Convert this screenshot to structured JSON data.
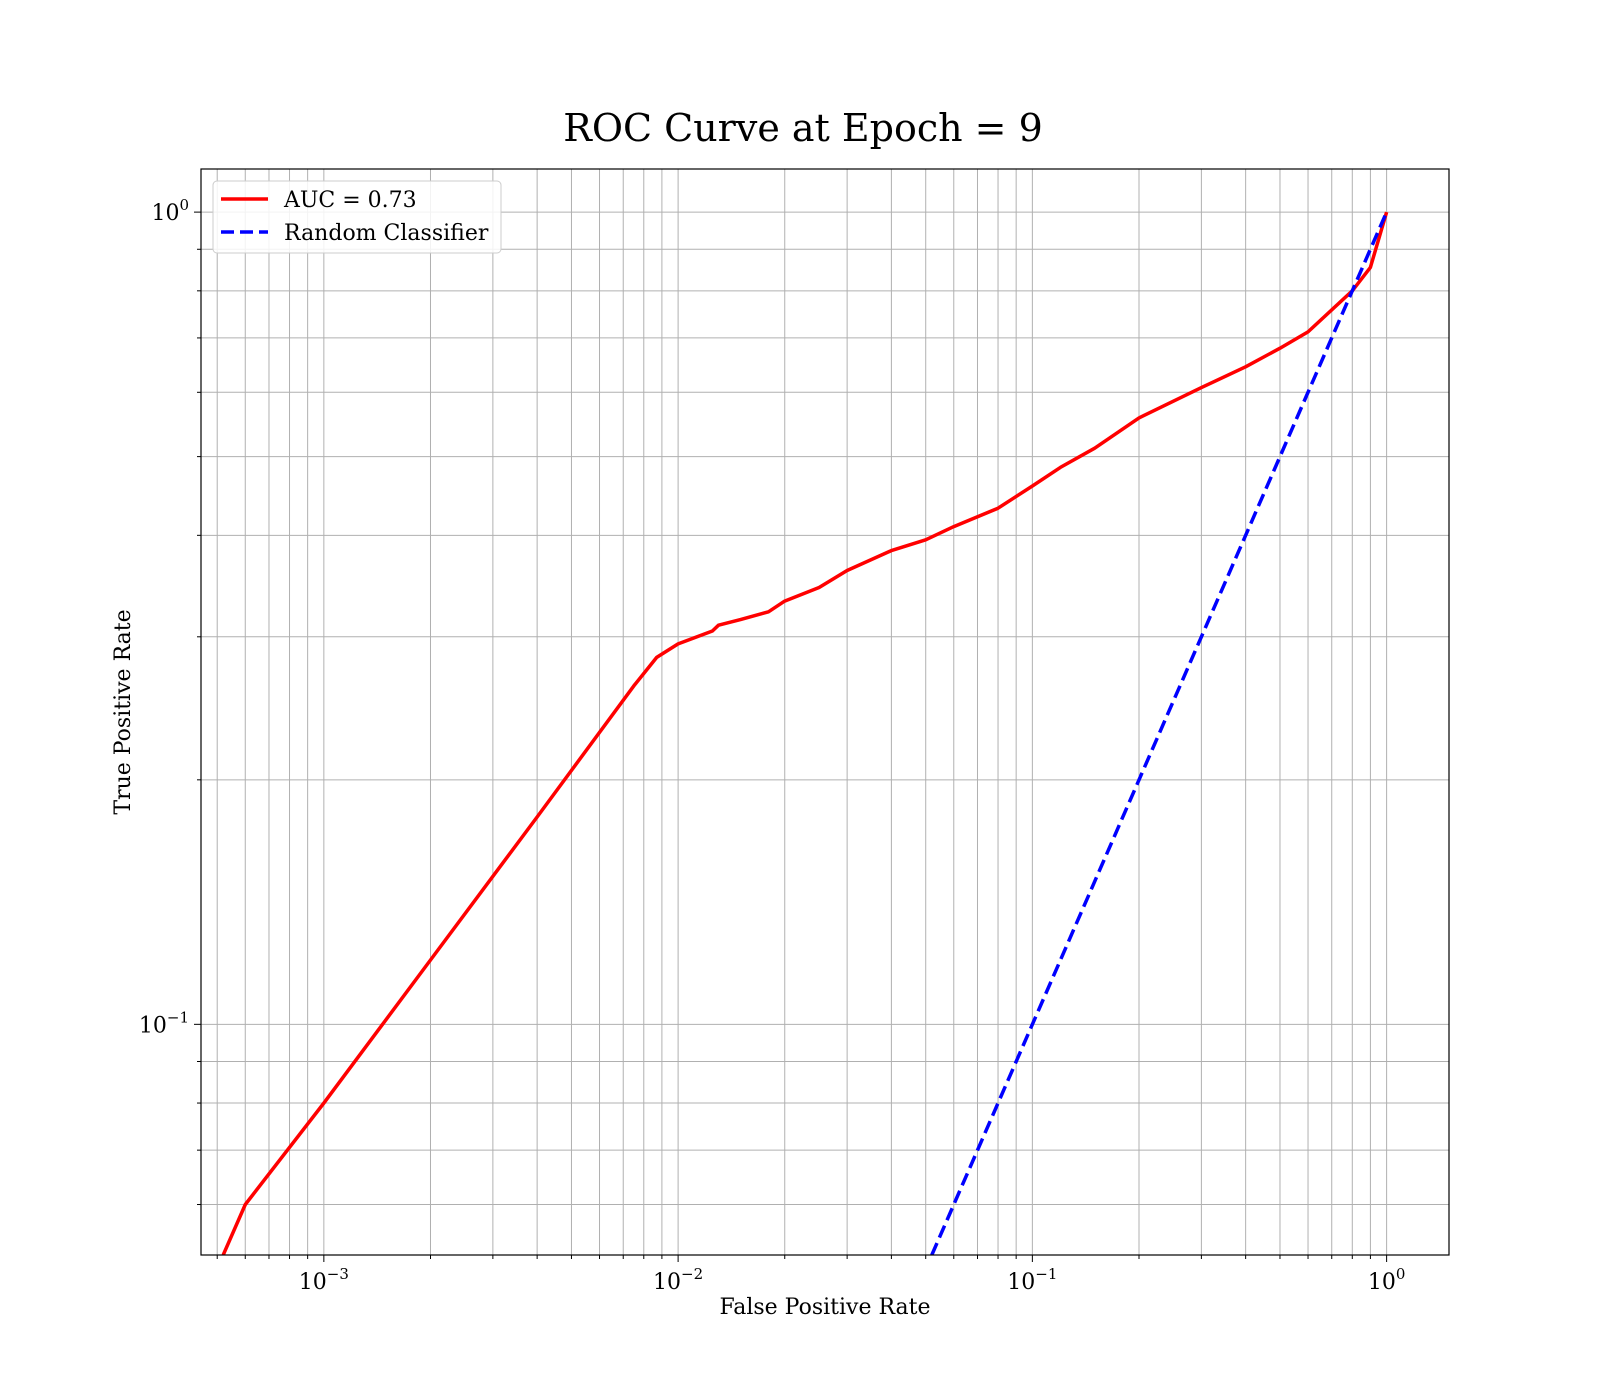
{
  "chart_data": {
    "type": "line",
    "title": "ROC Curve at Epoch = 9",
    "xlabel": "False Positive Rate",
    "ylabel": "True Positive Rate",
    "xscale": "log",
    "yscale": "log",
    "xlim": [
      0.00045,
      1.5
    ],
    "ylim": [
      0.052,
      1.13
    ],
    "grid": "both-major-minor",
    "legend_position": "top-left",
    "x_ticks": [
      {
        "base": "10",
        "exp": "−3",
        "value": 0.001
      },
      {
        "base": "10",
        "exp": "−2",
        "value": 0.01
      },
      {
        "base": "10",
        "exp": "−1",
        "value": 0.1
      },
      {
        "base": "10",
        "exp": "0",
        "value": 1
      }
    ],
    "y_ticks": [
      {
        "base": "10",
        "exp": "−1",
        "value": 0.1
      },
      {
        "base": "10",
        "exp": "0",
        "value": 1
      }
    ],
    "series": [
      {
        "name": "AUC = 0.73",
        "color": "#ff0000",
        "style": "solid",
        "points": [
          [
            0.00052,
            0.052
          ],
          [
            0.0006,
            0.06
          ],
          [
            0.001,
            0.08
          ],
          [
            0.002,
            0.12
          ],
          [
            0.004,
            0.18
          ],
          [
            0.0075,
            0.261
          ],
          [
            0.0087,
            0.283
          ],
          [
            0.01,
            0.294
          ],
          [
            0.0125,
            0.305
          ],
          [
            0.013,
            0.31
          ],
          [
            0.015,
            0.315
          ],
          [
            0.018,
            0.322
          ],
          [
            0.02,
            0.332
          ],
          [
            0.025,
            0.345
          ],
          [
            0.03,
            0.362
          ],
          [
            0.04,
            0.383
          ],
          [
            0.05,
            0.395
          ],
          [
            0.06,
            0.41
          ],
          [
            0.08,
            0.432
          ],
          [
            0.1,
            0.46
          ],
          [
            0.12,
            0.485
          ],
          [
            0.15,
            0.512
          ],
          [
            0.2,
            0.558
          ],
          [
            0.3,
            0.608
          ],
          [
            0.4,
            0.645
          ],
          [
            0.5,
            0.68
          ],
          [
            0.6,
            0.712
          ],
          [
            0.8,
            0.8
          ],
          [
            0.9,
            0.855
          ],
          [
            1.0,
            1.0
          ]
        ]
      },
      {
        "name": "Random Classifier",
        "color": "#0000ff",
        "style": "dashed",
        "points": [
          [
            0.052,
            0.052
          ],
          [
            1.0,
            1.0
          ]
        ]
      }
    ]
  }
}
